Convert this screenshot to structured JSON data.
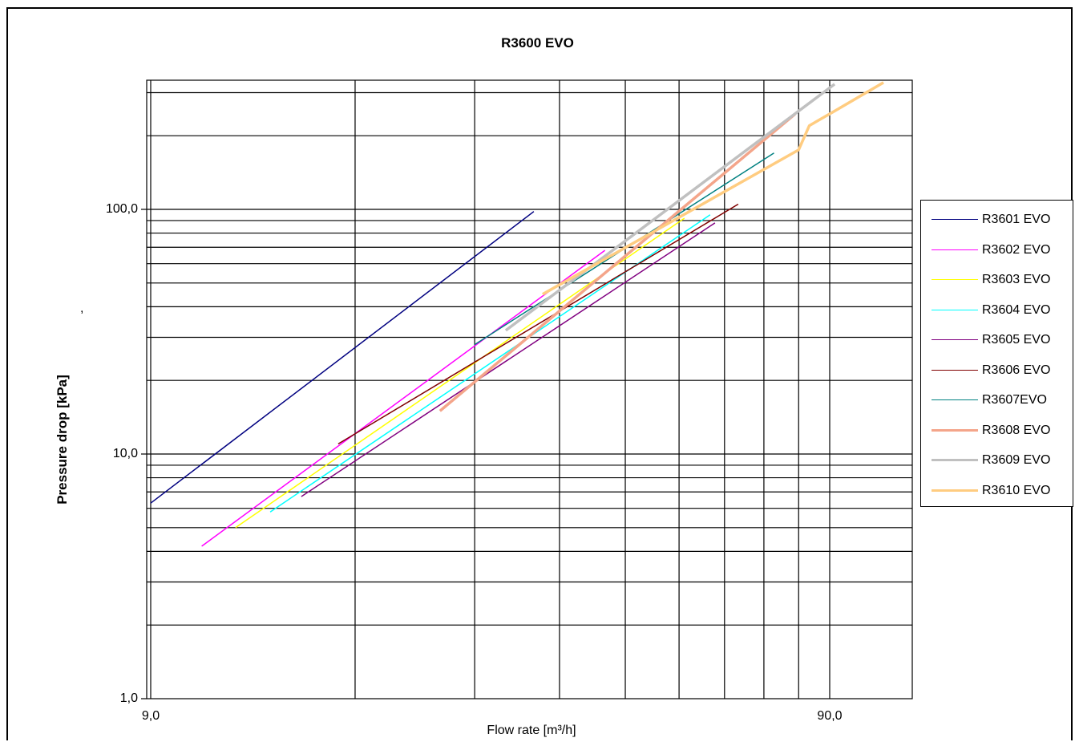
{
  "chart_data": {
    "type": "line",
    "title": "R3600 EVO",
    "xlabel": "Flow rate [m³/h]",
    "ylabel": "Pressure drop [kPa]",
    "x_scale": "log",
    "y_scale": "log",
    "xlim": [
      9,
      120
    ],
    "ylim": [
      1,
      400
    ],
    "x_ticks": [
      9,
      90
    ],
    "x_tick_labels": [
      "9,0",
      "90,0"
    ],
    "y_ticks": [
      1,
      10,
      100
    ],
    "y_tick_labels": [
      "1,0",
      "10,0",
      "100,0"
    ],
    "x_gridlines": [
      9,
      18,
      27,
      36,
      45,
      54,
      63,
      72,
      81,
      90
    ],
    "y_gridlines": [
      2,
      3,
      4,
      5,
      6,
      7,
      8,
      9,
      10,
      20,
      30,
      40,
      50,
      60,
      70,
      80,
      90,
      100,
      200,
      300
    ],
    "grid": true,
    "legend_position": "right",
    "stray_mark": ",",
    "series": [
      {
        "name": "R3601 EVO",
        "color": "#000080",
        "width": 1.5,
        "x": [
          9.0,
          33.0
        ],
        "y": [
          6.3,
          98
        ]
      },
      {
        "name": "R3602 EVO",
        "color": "#ff00ff",
        "width": 1.5,
        "x": [
          10.7,
          42.0
        ],
        "y": [
          4.2,
          68
        ]
      },
      {
        "name": "R3603 EVO",
        "color": "#ffff00",
        "width": 1.5,
        "x": [
          12.0,
          55.0
        ],
        "y": [
          5.0,
          92
        ]
      },
      {
        "name": "R3604 EVO",
        "color": "#00ffff",
        "width": 1.5,
        "x": [
          13.5,
          60.0
        ],
        "y": [
          5.8,
          95
        ]
      },
      {
        "name": "R3605 EVO",
        "color": "#800080",
        "width": 1.5,
        "x": [
          15.0,
          61.0
        ],
        "y": [
          6.7,
          88
        ]
      },
      {
        "name": "R3606 EVO",
        "color": "#800000",
        "width": 1.5,
        "x": [
          17.0,
          66.0
        ],
        "y": [
          11,
          105
        ]
      },
      {
        "name": "R3607EVO",
        "color": "#008080",
        "width": 1.5,
        "x": [
          27.0,
          74.5
        ],
        "y": [
          28,
          170
        ]
      },
      {
        "name": "R3608 EVO",
        "color": "#f4a58a",
        "width": 3.5,
        "x": [
          24.0,
          80.0
        ],
        "y": [
          15,
          245
        ]
      },
      {
        "name": "R3609 EVO",
        "color": "#c0c0c0",
        "width": 3.5,
        "x": [
          30.0,
          91.5
        ],
        "y": [
          32,
          325
        ]
      },
      {
        "name": "R3610 EVO",
        "color": "#ffcc80",
        "width": 3.5,
        "x": [
          34.0,
          81.0,
          84.0,
          91.0,
          108.0
        ],
        "y": [
          45,
          175,
          220,
          250,
          330
        ]
      }
    ]
  }
}
